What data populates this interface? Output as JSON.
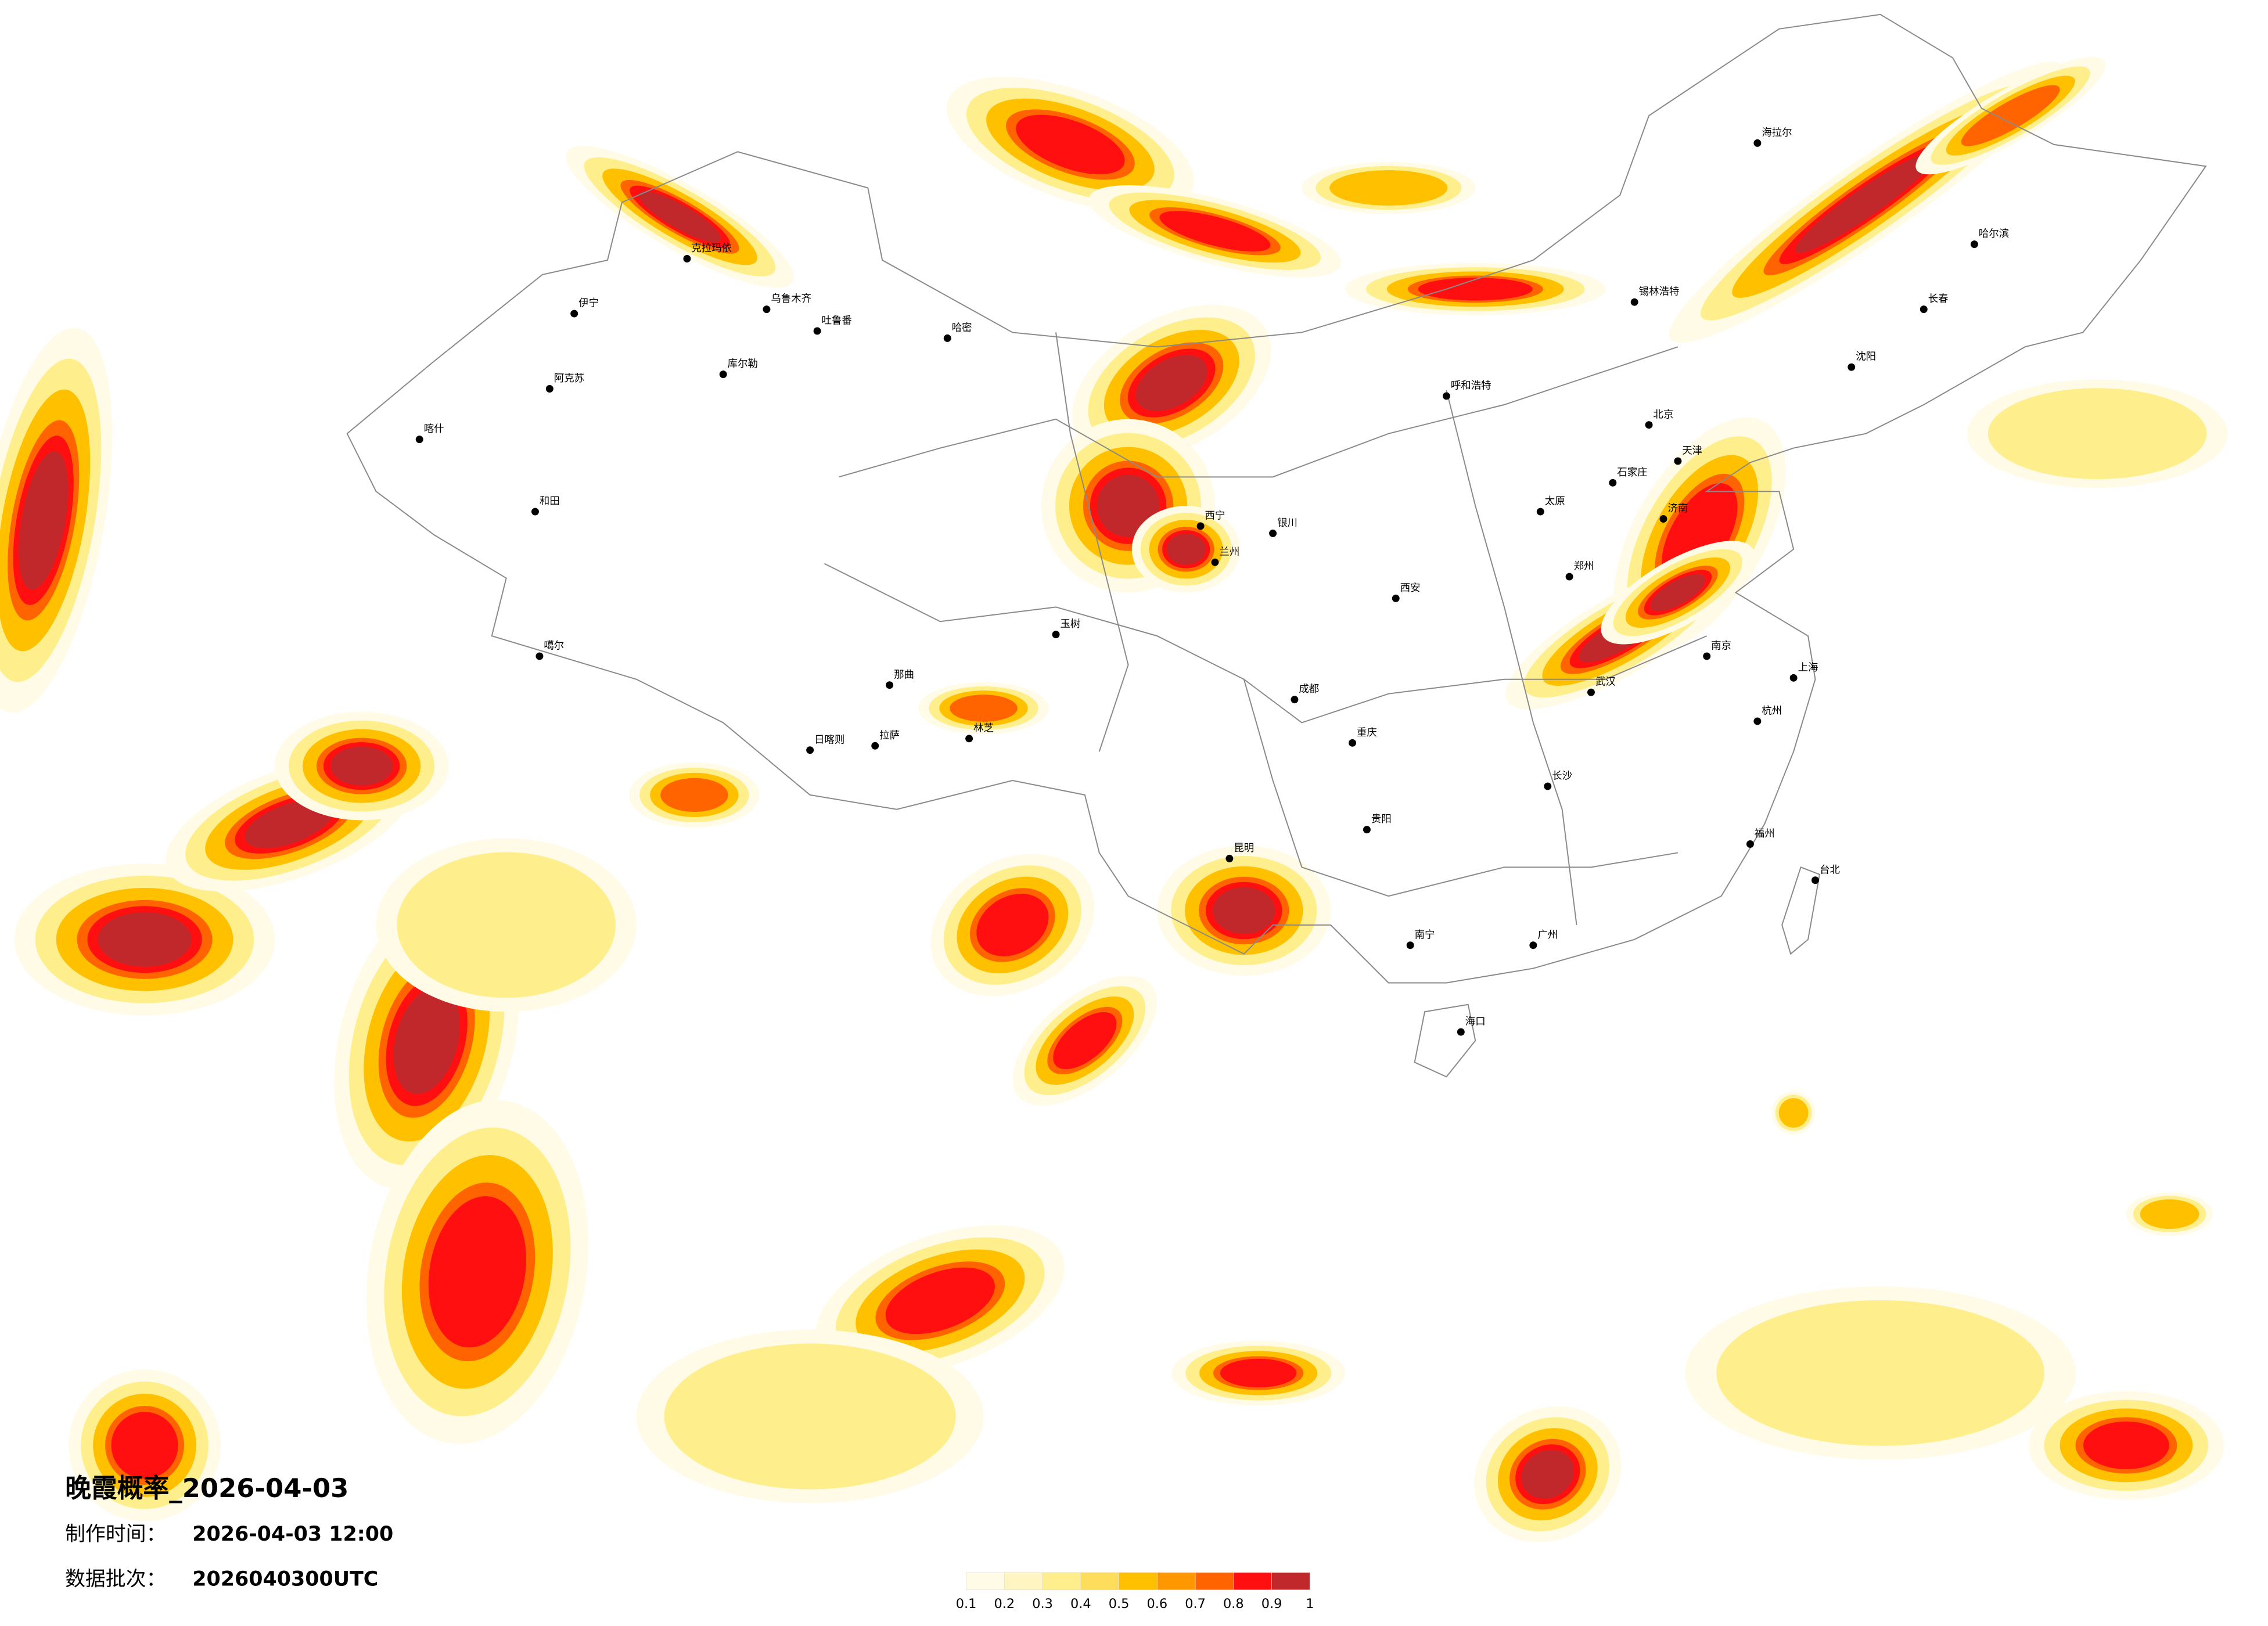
{
  "map": {
    "title": "晚霞概率_2026-04-03",
    "made_time_label": "制作时间：",
    "made_time": "2026-04-03 12:00",
    "batch_label": "数据批次：",
    "batch": "2026040300UTC",
    "legend": {
      "ticks": [
        0.1,
        0.2,
        0.3,
        0.4,
        0.5,
        0.6,
        0.7,
        0.8,
        0.9,
        1
      ],
      "colors": [
        "#fffbe6",
        "#fff5c2",
        "#ffef8c",
        "#ffdd5c",
        "#ffc000",
        "#ff9800",
        "#ff6400",
        "#ff0f0f",
        "#c0282c"
      ]
    },
    "cities": [
      "伊宁",
      "克拉玛依",
      "乌鲁木齐",
      "吐鲁番",
      "哈密",
      "库尔勒",
      "阿克苏",
      "喀什",
      "和田",
      "噶尔",
      "日喀则",
      "拉萨",
      "林芝",
      "那曲",
      "玉树",
      "西宁",
      "兰州",
      "银川",
      "呼和浩特",
      "北京",
      "天津",
      "石家庄",
      "太原",
      "西安",
      "郑州",
      "济南",
      "南京",
      "上海",
      "杭州",
      "武汉",
      "长沙",
      "成都",
      "重庆",
      "贵阳",
      "昆明",
      "南宁",
      "广州",
      "福州",
      "海口",
      "台北",
      "哈尔滨",
      "长春",
      "沈阳",
      "海拉尔",
      "锡林浩特"
    ]
  }
}
